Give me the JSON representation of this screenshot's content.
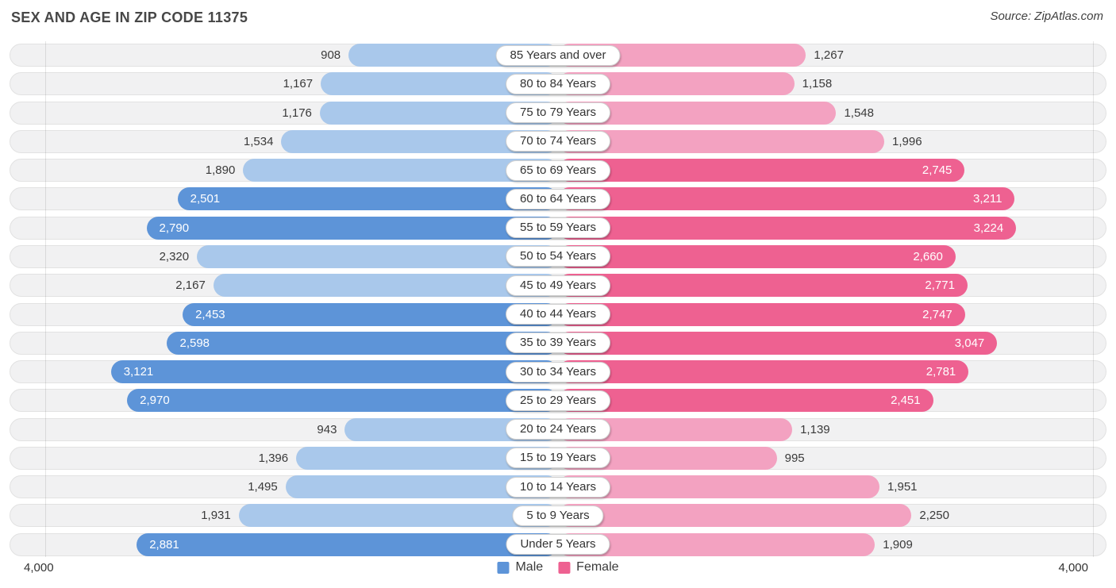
{
  "header": {
    "title": "SEX AND AGE IN ZIP CODE 11375",
    "source": "Source: ZipAtlas.com"
  },
  "axis": {
    "left_label": "4,000",
    "right_label": "4,000",
    "max": 4000
  },
  "legend": {
    "male_label": "Male",
    "female_label": "Female"
  },
  "colors": {
    "male_dark": "#5d94d8",
    "male_light": "#a9c8eb",
    "female_dark": "#ee6191",
    "female_light": "#f3a2c1",
    "track_bg": "#f1f1f2",
    "track_border": "#e2e2e2"
  },
  "chart_data": {
    "type": "bar",
    "subtype": "population-pyramid",
    "title": "SEX AND AGE IN ZIP CODE 11375",
    "xlim": [
      -4000,
      4000
    ],
    "legend_position": "bottom-center",
    "series_names": [
      "Male",
      "Female"
    ],
    "rows": [
      {
        "age": "85 Years and over",
        "male": 908,
        "female": 1267,
        "male_label": "908",
        "female_label": "1,267"
      },
      {
        "age": "80 to 84 Years",
        "male": 1167,
        "female": 1158,
        "male_label": "1,167",
        "female_label": "1,158"
      },
      {
        "age": "75 to 79 Years",
        "male": 1176,
        "female": 1548,
        "male_label": "1,176",
        "female_label": "1,548"
      },
      {
        "age": "70 to 74 Years",
        "male": 1534,
        "female": 1996,
        "male_label": "1,534",
        "female_label": "1,996"
      },
      {
        "age": "65 to 69 Years",
        "male": 1890,
        "female": 2745,
        "male_label": "1,890",
        "female_label": "2,745"
      },
      {
        "age": "60 to 64 Years",
        "male": 2501,
        "female": 3211,
        "male_label": "2,501",
        "female_label": "3,211"
      },
      {
        "age": "55 to 59 Years",
        "male": 2790,
        "female": 3224,
        "male_label": "2,790",
        "female_label": "3,224"
      },
      {
        "age": "50 to 54 Years",
        "male": 2320,
        "female": 2660,
        "male_label": "2,320",
        "female_label": "2,660"
      },
      {
        "age": "45 to 49 Years",
        "male": 2167,
        "female": 2771,
        "male_label": "2,167",
        "female_label": "2,771"
      },
      {
        "age": "40 to 44 Years",
        "male": 2453,
        "female": 2747,
        "male_label": "2,453",
        "female_label": "2,747"
      },
      {
        "age": "35 to 39 Years",
        "male": 2598,
        "female": 3047,
        "male_label": "2,598",
        "female_label": "3,047"
      },
      {
        "age": "30 to 34 Years",
        "male": 3121,
        "female": 2781,
        "male_label": "3,121",
        "female_label": "2,781"
      },
      {
        "age": "25 to 29 Years",
        "male": 2970,
        "female": 2451,
        "male_label": "2,970",
        "female_label": "2,451"
      },
      {
        "age": "20 to 24 Years",
        "male": 943,
        "female": 1139,
        "male_label": "943",
        "female_label": "1,139"
      },
      {
        "age": "15 to 19 Years",
        "male": 1396,
        "female": 995,
        "male_label": "1,396",
        "female_label": "995"
      },
      {
        "age": "10 to 14 Years",
        "male": 1495,
        "female": 1951,
        "male_label": "1,495",
        "female_label": "1,951"
      },
      {
        "age": "5 to 9 Years",
        "male": 1931,
        "female": 2250,
        "male_label": "1,931",
        "female_label": "2,250"
      },
      {
        "age": "Under 5 Years",
        "male": 2881,
        "female": 1909,
        "male_label": "2,881",
        "female_label": "1,909"
      }
    ]
  }
}
